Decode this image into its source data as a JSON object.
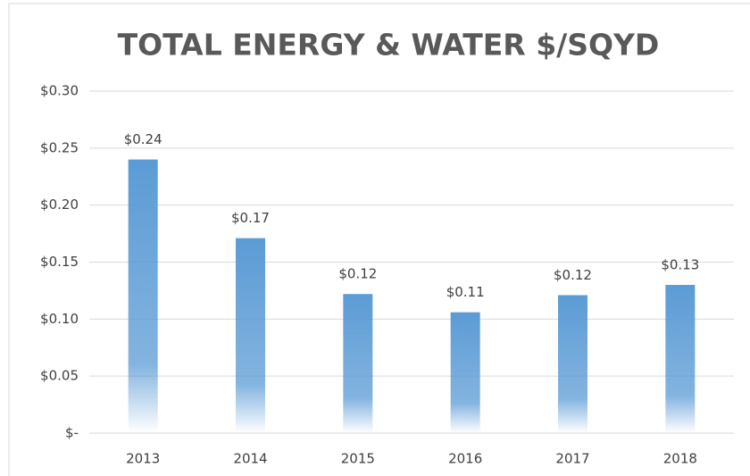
{
  "chart_data": {
    "type": "bar",
    "title": "TOTAL ENERGY & WATER $/SQYD",
    "categories": [
      "2013",
      "2014",
      "2015",
      "2016",
      "2017",
      "2018"
    ],
    "values": [
      0.24,
      0.171,
      0.122,
      0.106,
      0.121,
      0.13
    ],
    "value_labels": [
      "$0.24",
      "$0.17",
      "$0.12",
      "$0.11",
      "$0.12",
      "$0.13"
    ],
    "color": "#5b9bd5",
    "ylim": [
      0,
      0.3
    ],
    "yticks": [
      {
        "value": 0,
        "label": "$-"
      },
      {
        "value": 0.05,
        "label": "$0.05"
      },
      {
        "value": 0.1,
        "label": "$0.10"
      },
      {
        "value": 0.15,
        "label": "$0.15"
      },
      {
        "value": 0.2,
        "label": "$0.20"
      },
      {
        "value": 0.25,
        "label": "$0.25"
      },
      {
        "value": 0.3,
        "label": "$0.30"
      }
    ],
    "grid": true
  }
}
